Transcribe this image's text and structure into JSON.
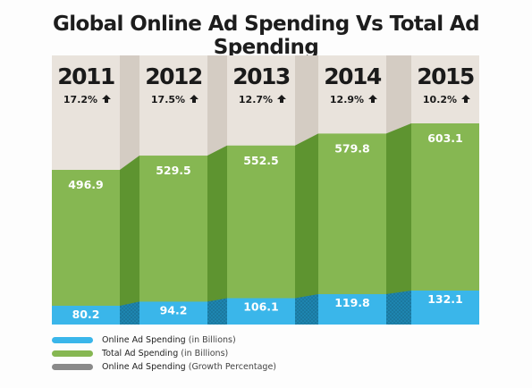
{
  "title": "Global Online Ad Spending Vs Total Ad Spending",
  "colors": {
    "background_band": "#e9e3dc",
    "total_face": "#86b752",
    "total_side": "#5e9430",
    "online_face": "#3ab6ea",
    "online_side": "#1e85b0",
    "growth": "#8a8a8a"
  },
  "chart_data": {
    "type": "bar",
    "categories": [
      "2011",
      "2012",
      "2013",
      "2014",
      "2015"
    ],
    "series": [
      {
        "name": "Total Ad Spending",
        "values": [
          496.9,
          529.5,
          552.5,
          579.8,
          603.1
        ],
        "labels": [
          "496.9",
          "529.5",
          "552.5",
          "579.8",
          "603.1"
        ]
      },
      {
        "name": "Online Ad Spending",
        "values": [
          80.2,
          94.2,
          106.1,
          119.8,
          132.1
        ],
        "labels": [
          "80.2",
          "94.2",
          "106.1",
          "119.8",
          "132.1"
        ]
      },
      {
        "name": "Online Ad Spending (Growth Percentage)",
        "values": [
          17.2,
          17.5,
          12.7,
          12.9,
          10.2
        ],
        "labels": [
          "17.2%",
          "17.5%",
          "12.7%",
          "12.9%",
          "10.2%"
        ]
      }
    ],
    "growth_arrow": "up-arrow-icon"
  },
  "legend": [
    {
      "label": "Online Ad Spending",
      "qualifier": "(in Billions)",
      "color": "#3ab6ea"
    },
    {
      "label": "Total Ad Spending",
      "qualifier": "(in Billions)",
      "color": "#86b752"
    },
    {
      "label": "Online Ad Spending",
      "qualifier": "(Growth Percentage)",
      "color": "#8a8a8a"
    }
  ]
}
